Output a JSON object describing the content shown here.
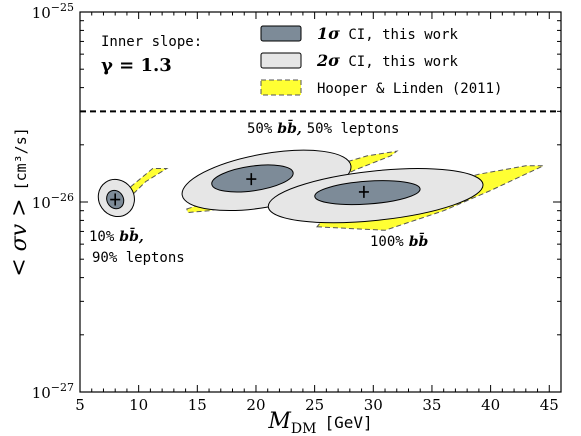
{
  "chart_data": {
    "type": "contour",
    "xlabel_main": "M",
    "xlabel_sub": "DM",
    "xlabel_unit": "[GeV]",
    "ylabel_main": "< σv >",
    "ylabel_unit": "[cm³/s]",
    "xlim": [
      5,
      46
    ],
    "ylim_exp": [
      -27,
      -25
    ],
    "y_scale": "log",
    "x_ticks": [
      5,
      10,
      15,
      20,
      25,
      30,
      35,
      40,
      45
    ],
    "x_tick_labels": [
      "5",
      "10",
      "15",
      "20",
      "25",
      "30",
      "35",
      "40",
      "45"
    ],
    "y_ticks_exp": [
      -27,
      -26,
      -25
    ],
    "y_tick_labels": [
      "10",
      "10",
      "10"
    ],
    "y_tick_label_exps": [
      "−27",
      "−26",
      "−25"
    ],
    "inner_slope_title": "Inner slope:",
    "inner_slope_value": "γ = 1.3",
    "thermal_line_value": 3e-26,
    "legend_placement": "top-right",
    "legend": [
      {
        "label_sym": "1σ",
        "label_text": " CI, this work",
        "fill": "#7d8b98",
        "edge": "#000000",
        "dashed": false
      },
      {
        "label_sym": "2σ",
        "label_text": " CI, this work",
        "fill": "#e6e6e6",
        "edge": "#000000",
        "dashed": false
      },
      {
        "label_sym": "",
        "label_text": "Hooper & Linden (2011)",
        "fill": "#ffff33",
        "edge": "#555555",
        "dashed": true
      }
    ],
    "series": [
      {
        "channel": "10% bb̄, 90% leptons",
        "label_pct": "10%",
        "label_bb": "bb̄,",
        "label_rest": "90% leptons",
        "best_fit": [
          8,
          1.03e-26
        ],
        "sigma1": {
          "cx": 8,
          "cy": 1.03e-26,
          "rx": 0.7,
          "ry_dex": 0.05,
          "angle_deg": -30
        },
        "sigma2": {
          "cx": 8.1,
          "cy": 1.05e-26,
          "rx": 1.5,
          "ry_dex": 0.1,
          "angle_deg": -35
        },
        "hooper": [
          [
            8.1,
            9e-27
          ],
          [
            10.6,
            1.28e-26
          ],
          [
            12.4,
            1.5e-26
          ],
          [
            11.2,
            1.5e-26
          ],
          [
            9.3,
            1.2e-26
          ],
          [
            7.6,
            1e-26
          ]
        ]
      },
      {
        "channel": "50% bb̄, 50% leptons",
        "label_pct": "50%",
        "label_bb": "bb̄,",
        "label_text_rest": "50% leptons",
        "best_fit": [
          19.6,
          1.32e-26
        ],
        "sigma1": {
          "cx": 19.7,
          "cy": 1.33e-26,
          "rx": 3.5,
          "ry_dex": 0.065,
          "angle_deg": -8
        },
        "sigma2": {
          "cx": 20.9,
          "cy": 1.3e-26,
          "rx": 7.3,
          "ry_dex": 0.14,
          "angle_deg": -10
        },
        "hooper": [
          [
            14.1,
            9.2e-27
          ],
          [
            16.5,
            1.02e-26
          ],
          [
            21,
            1.2e-26
          ],
          [
            25,
            1.45e-26
          ],
          [
            29.5,
            1.75e-26
          ],
          [
            32,
            1.85e-26
          ],
          [
            31.5,
            1.75e-26
          ],
          [
            28.5,
            1.48e-26
          ],
          [
            26,
            1.25e-26
          ],
          [
            22,
            1.05e-26
          ],
          [
            16,
            9e-27
          ],
          [
            14.2,
            8.8e-27
          ]
        ]
      },
      {
        "channel": "100% bb̄",
        "label_pct": "100%",
        "label_bb": "bb̄",
        "best_fit": [
          29.2,
          1.13e-26
        ],
        "sigma1": {
          "cx": 29.5,
          "cy": 1.12e-26,
          "rx": 4.5,
          "ry_dex": 0.06,
          "angle_deg": -4
        },
        "sigma2": {
          "cx": 30.2,
          "cy": 1.08e-26,
          "rx": 9.2,
          "ry_dex": 0.13,
          "angle_deg": -6
        },
        "hooper": [
          [
            25.2,
            7.4e-27
          ],
          [
            31,
            7.1e-27
          ],
          [
            36,
            9e-27
          ],
          [
            40,
            1.15e-26
          ],
          [
            44.5,
            1.55e-26
          ],
          [
            43,
            1.55e-26
          ],
          [
            39,
            1.4e-26
          ],
          [
            35,
            1.2e-26
          ],
          [
            31,
            1.05e-26
          ],
          [
            28,
            9e-27
          ],
          [
            25.5,
            7.8e-27
          ]
        ]
      }
    ]
  }
}
